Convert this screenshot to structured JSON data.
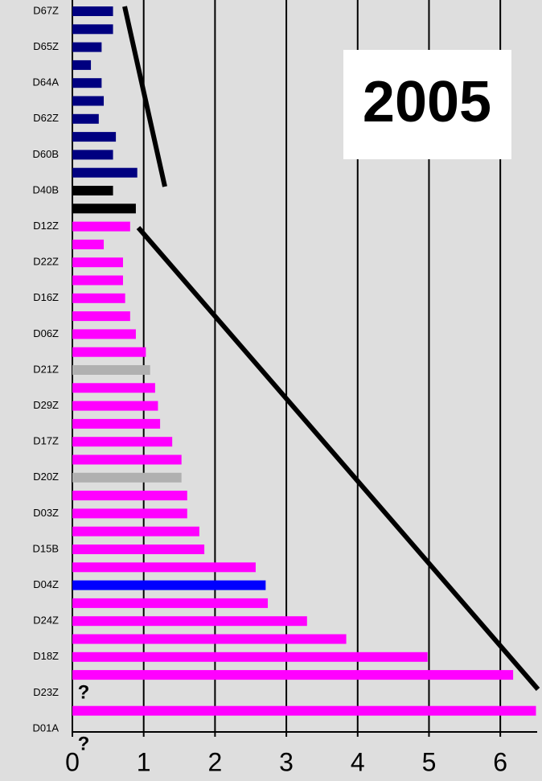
{
  "chart_data": {
    "type": "hbar",
    "annotations": [
      "2005",
      "?",
      "?"
    ],
    "categories": [
      "D67Z",
      null,
      "D65Z",
      null,
      "D64A",
      null,
      "D62Z",
      null,
      "D60B",
      null,
      "D40B",
      null,
      "D12Z",
      null,
      "D22Z",
      null,
      "D16Z",
      null,
      "D06Z",
      null,
      "D21Z",
      null,
      "D29Z",
      null,
      "D17Z",
      null,
      "D20Z",
      null,
      "D03Z",
      null,
      "D15B",
      null,
      "D04Z",
      null,
      "D24Z",
      null,
      "D18Z",
      null,
      "D23Z",
      null,
      "D01A"
    ],
    "values": [
      0.57,
      0.57,
      0.41,
      0.26,
      0.41,
      0.44,
      0.37,
      0.61,
      0.57,
      0.91,
      0.57,
      0.89,
      0.81,
      0.44,
      0.71,
      0.71,
      0.74,
      0.81,
      0.89,
      1.03,
      1.09,
      1.16,
      1.2,
      1.23,
      1.4,
      1.53,
      1.53,
      1.61,
      1.61,
      1.78,
      1.85,
      2.57,
      2.71,
      2.74,
      3.29,
      3.84,
      4.98,
      6.18,
      null,
      6.5,
      null
    ],
    "colors": [
      "#000080",
      "#000080",
      "#000080",
      "#000080",
      "#000080",
      "#000080",
      "#000080",
      "#000080",
      "#000080",
      "#000080",
      "#000000",
      "#000000",
      "#ff00ff",
      "#ff00ff",
      "#ff00ff",
      "#ff00ff",
      "#ff00ff",
      "#ff00ff",
      "#ff00ff",
      "#ff00ff",
      "#b0b0b0",
      "#ff00ff",
      "#ff00ff",
      "#ff00ff",
      "#ff00ff",
      "#ff00ff",
      "#b0b0b0",
      "#ff00ff",
      "#ff00ff",
      "#ff00ff",
      "#ff00ff",
      "#ff00ff",
      "#0000ff",
      "#ff00ff",
      "#ff00ff",
      "#ff00ff",
      "#ff00ff",
      "#ff00ff",
      "#ff00ff",
      "#ff00ff",
      "#ff00ff"
    ],
    "xlim": [
      0,
      6.5
    ],
    "xticks": [
      0,
      1,
      2,
      3,
      4,
      5,
      6
    ],
    "grid": true
  }
}
